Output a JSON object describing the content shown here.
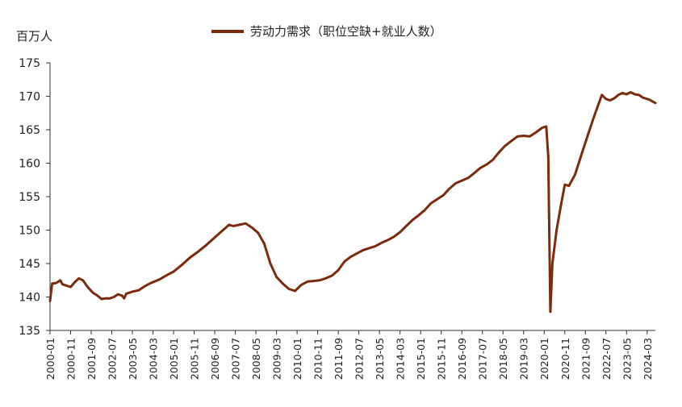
{
  "chart_data": {
    "type": "line",
    "unit_label": "百万人",
    "ylim": [
      135,
      175
    ],
    "y_ticks": [
      135,
      140,
      145,
      150,
      155,
      160,
      165,
      170,
      175
    ],
    "x_range": [
      "2000-01",
      "2024-07"
    ],
    "x_ticks": [
      "2000-01",
      "2000-11",
      "2001-09",
      "2002-07",
      "2003-05",
      "2004-03",
      "2005-01",
      "2005-11",
      "2006-09",
      "2007-07",
      "2008-05",
      "2009-03",
      "2010-01",
      "2010-11",
      "2011-09",
      "2012-07",
      "2013-05",
      "2014-03",
      "2015-01",
      "2015-11",
      "2016-09",
      "2017-07",
      "2018-05",
      "2019-03",
      "2020-01",
      "2020-11",
      "2021-09",
      "2022-07",
      "2023-05",
      "2024-03"
    ],
    "grid": false,
    "legend_position": "top",
    "series": [
      {
        "name": "劳动力需求（职位空缺+就业人数）",
        "color": "#7B2B0E",
        "points": [
          [
            "2000-01",
            139.4
          ],
          [
            "2000-02",
            142.0
          ],
          [
            "2000-04",
            142.1
          ],
          [
            "2000-06",
            142.5
          ],
          [
            "2000-07",
            141.9
          ],
          [
            "2000-09",
            141.7
          ],
          [
            "2000-11",
            141.5
          ],
          [
            "2001-01",
            142.2
          ],
          [
            "2001-03",
            142.8
          ],
          [
            "2001-05",
            142.5
          ],
          [
            "2001-07",
            141.6
          ],
          [
            "2001-09",
            140.9
          ],
          [
            "2001-10",
            140.6
          ],
          [
            "2001-12",
            140.2
          ],
          [
            "2002-02",
            139.7
          ],
          [
            "2002-04",
            139.8
          ],
          [
            "2002-06",
            139.8
          ],
          [
            "2002-08",
            140.0
          ],
          [
            "2002-10",
            140.4
          ],
          [
            "2002-12",
            140.2
          ],
          [
            "2003-01",
            139.8
          ],
          [
            "2003-02",
            140.5
          ],
          [
            "2003-05",
            140.8
          ],
          [
            "2003-08",
            141.0
          ],
          [
            "2003-11",
            141.6
          ],
          [
            "2004-02",
            142.1
          ],
          [
            "2004-06",
            142.6
          ],
          [
            "2004-10",
            143.3
          ],
          [
            "2005-01",
            143.8
          ],
          [
            "2005-05",
            144.8
          ],
          [
            "2005-09",
            145.9
          ],
          [
            "2006-01",
            146.8
          ],
          [
            "2006-05",
            147.8
          ],
          [
            "2006-09",
            148.9
          ],
          [
            "2007-01",
            150.0
          ],
          [
            "2007-04",
            150.8
          ],
          [
            "2007-06",
            150.6
          ],
          [
            "2007-09",
            150.8
          ],
          [
            "2007-12",
            151.0
          ],
          [
            "2008-03",
            150.4
          ],
          [
            "2008-06",
            149.6
          ],
          [
            "2008-09",
            148.0
          ],
          [
            "2008-12",
            145.0
          ],
          [
            "2009-03",
            143.0
          ],
          [
            "2009-06",
            142.0
          ],
          [
            "2009-09",
            141.2
          ],
          [
            "2009-12",
            140.9
          ],
          [
            "2010-03",
            141.8
          ],
          [
            "2010-06",
            142.3
          ],
          [
            "2010-09",
            142.4
          ],
          [
            "2010-12",
            142.5
          ],
          [
            "2011-03",
            142.8
          ],
          [
            "2011-06",
            143.2
          ],
          [
            "2011-09",
            144.0
          ],
          [
            "2011-12",
            145.3
          ],
          [
            "2012-03",
            146.0
          ],
          [
            "2012-06",
            146.5
          ],
          [
            "2012-09",
            147.0
          ],
          [
            "2012-12",
            147.3
          ],
          [
            "2013-03",
            147.6
          ],
          [
            "2013-06",
            148.1
          ],
          [
            "2013-09",
            148.5
          ],
          [
            "2013-12",
            149.0
          ],
          [
            "2014-03",
            149.7
          ],
          [
            "2014-06",
            150.6
          ],
          [
            "2014-09",
            151.5
          ],
          [
            "2014-12",
            152.2
          ],
          [
            "2015-03",
            153.0
          ],
          [
            "2015-06",
            154.0
          ],
          [
            "2015-09",
            154.6
          ],
          [
            "2015-12",
            155.2
          ],
          [
            "2016-03",
            156.2
          ],
          [
            "2016-06",
            157.0
          ],
          [
            "2016-09",
            157.4
          ],
          [
            "2016-12",
            157.8
          ],
          [
            "2017-03",
            158.5
          ],
          [
            "2017-06",
            159.3
          ],
          [
            "2017-09",
            159.8
          ],
          [
            "2017-12",
            160.5
          ],
          [
            "2018-03",
            161.6
          ],
          [
            "2018-06",
            162.6
          ],
          [
            "2018-09",
            163.3
          ],
          [
            "2018-12",
            164.0
          ],
          [
            "2019-03",
            164.1
          ],
          [
            "2019-06",
            164.0
          ],
          [
            "2019-09",
            164.6
          ],
          [
            "2019-12",
            165.3
          ],
          [
            "2020-02",
            165.5
          ],
          [
            "2020-03",
            161.0
          ],
          [
            "2020-04",
            137.8
          ],
          [
            "2020-05",
            145.0
          ],
          [
            "2020-07",
            150.0
          ],
          [
            "2020-09",
            153.5
          ],
          [
            "2020-11",
            156.8
          ],
          [
            "2021-01",
            156.6
          ],
          [
            "2021-04",
            158.3
          ],
          [
            "2021-07",
            161.2
          ],
          [
            "2021-10",
            164.0
          ],
          [
            "2022-01",
            166.8
          ],
          [
            "2022-03",
            168.5
          ],
          [
            "2022-05",
            170.2
          ],
          [
            "2022-07",
            169.6
          ],
          [
            "2022-09",
            169.4
          ],
          [
            "2022-11",
            169.7
          ],
          [
            "2023-01",
            170.2
          ],
          [
            "2023-03",
            170.5
          ],
          [
            "2023-05",
            170.3
          ],
          [
            "2023-07",
            170.6
          ],
          [
            "2023-09",
            170.3
          ],
          [
            "2023-11",
            170.2
          ],
          [
            "2024-01",
            169.8
          ],
          [
            "2024-04",
            169.5
          ],
          [
            "2024-07",
            169.0
          ]
        ]
      }
    ]
  }
}
